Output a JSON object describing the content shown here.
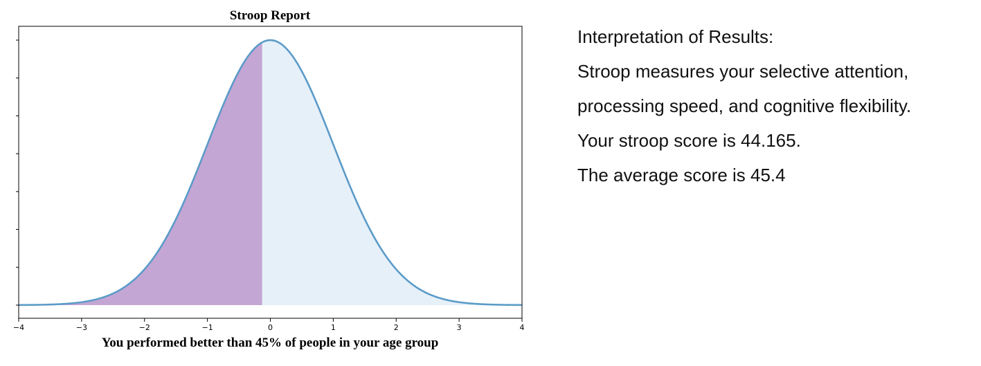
{
  "chart_data": {
    "type": "area",
    "title": "Stroop Report",
    "xlabel": "You performed better than 45% of people in your age group",
    "ylabel": "",
    "xlim": [
      -4,
      4
    ],
    "xticks": [
      -4,
      -3,
      -2,
      -1,
      0,
      1,
      2,
      3,
      4
    ],
    "xtick_labels": [
      "−4",
      "−3",
      "−2",
      "−1",
      "0",
      "1",
      "2",
      "3",
      "4"
    ],
    "yticks_count": 8,
    "distribution": "standard normal",
    "curve_color": "#5b9bc8",
    "shaded_below_color": "#c4a6d4",
    "shaded_above_color": "#e6f0f9",
    "split_x": -0.13,
    "percentile": 45,
    "grid": false
  },
  "interpretation": {
    "heading": "Interpretation of Results:",
    "line1": "Stroop measures your selective attention,",
    "line2": "processing speed, and cognitive flexibility.",
    "line3": "Your stroop score is 44.165.",
    "line4": "The average score is 45.4"
  }
}
